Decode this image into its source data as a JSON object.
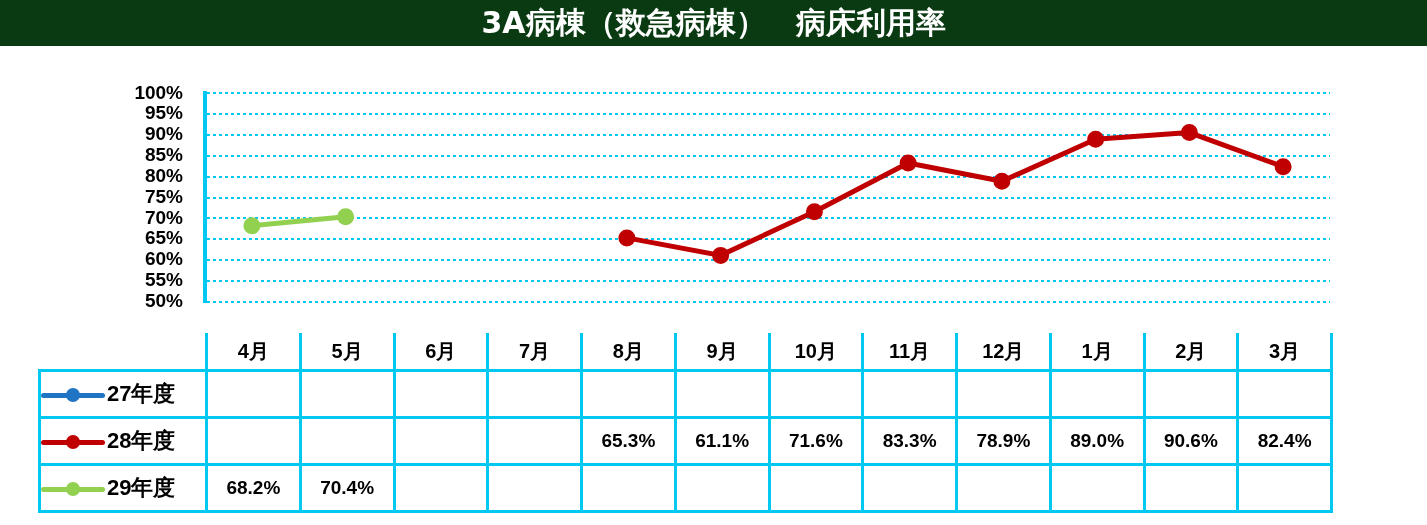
{
  "chart_data": {
    "type": "line",
    "title": "3A病棟（救急病棟）　病床利用率",
    "categories": [
      "4月",
      "5月",
      "6月",
      "7月",
      "8月",
      "9月",
      "10月",
      "11月",
      "12月",
      "1月",
      "2月",
      "3月"
    ],
    "series": [
      {
        "name": "27年度",
        "color": "#1f74c4",
        "values": [
          null,
          null,
          null,
          null,
          null,
          null,
          null,
          null,
          null,
          null,
          null,
          null
        ],
        "value_labels": [
          null,
          null,
          null,
          null,
          null,
          null,
          null,
          null,
          null,
          null,
          null,
          null
        ]
      },
      {
        "name": "28年度",
        "color": "#c00000",
        "values": [
          null,
          null,
          null,
          null,
          65.3,
          61.1,
          71.6,
          83.3,
          78.9,
          89.0,
          90.6,
          82.4
        ],
        "value_labels": [
          null,
          null,
          null,
          null,
          "65.3%",
          "61.1%",
          "71.6%",
          "83.3%",
          "78.9%",
          "89.0%",
          "90.6%",
          "82.4%"
        ]
      },
      {
        "name": "29年度",
        "color": "#92d050",
        "values": [
          68.2,
          70.4,
          null,
          null,
          null,
          null,
          null,
          null,
          null,
          null,
          null,
          null
        ],
        "value_labels": [
          "68.2%",
          "70.4%",
          null,
          null,
          null,
          null,
          null,
          null,
          null,
          null,
          null,
          null
        ]
      }
    ],
    "ylim": [
      50,
      100
    ],
    "yticks": [
      {
        "value": 50,
        "label": "50%"
      },
      {
        "value": 55,
        "label": "55%"
      },
      {
        "value": 60,
        "label": "60%"
      },
      {
        "value": 65,
        "label": "65%"
      },
      {
        "value": 70,
        "label": "70%"
      },
      {
        "value": 75,
        "label": "75%"
      },
      {
        "value": 80,
        "label": "80%"
      },
      {
        "value": 85,
        "label": "85%"
      },
      {
        "value": 90,
        "label": "90%"
      },
      {
        "value": 95,
        "label": "95%"
      },
      {
        "value": 100,
        "label": "100%"
      }
    ],
    "grid": "y",
    "legend": "bottom",
    "marker": "circle",
    "line_style": "solid"
  }
}
